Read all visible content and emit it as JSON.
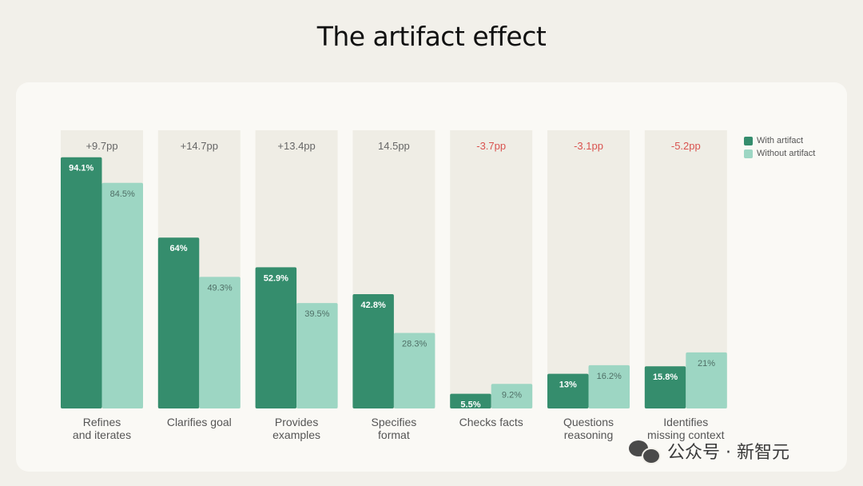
{
  "title": "The artifact effect",
  "colors": {
    "with_artifact": "#358d6d",
    "without_artifact": "#9dd6c3",
    "panel_bg": "#efede5",
    "positive_delta": "#666666",
    "negative_delta": "#d9534f"
  },
  "legend": {
    "with_label": "With artifact",
    "without_label": "Without artifact"
  },
  "watermark": "公众号 · 新智元",
  "chart_data": {
    "type": "bar",
    "title": "The artifact effect",
    "ylim": [
      0,
      100
    ],
    "grid": false,
    "legend_position": "top-right",
    "categories": [
      [
        "Refines",
        "and iterates"
      ],
      [
        "Clarifies goal"
      ],
      [
        "Provides",
        "examples"
      ],
      [
        "Specifies",
        "format"
      ],
      [
        "Checks facts"
      ],
      [
        "Questions",
        "reasoning"
      ],
      [
        "Identifies",
        "missing context"
      ]
    ],
    "deltas": [
      "+9.7pp",
      "+14.7pp",
      "+13.4pp",
      "14.5pp",
      "-3.7pp",
      "-3.1pp",
      "-5.2pp"
    ],
    "series": [
      {
        "name": "With artifact",
        "values": [
          94.1,
          64,
          52.9,
          42.8,
          5.5,
          13,
          15.8
        ],
        "labels": [
          "94.1%",
          "64%",
          "52.9%",
          "42.8%",
          "5.5%",
          "13%",
          "15.8%"
        ]
      },
      {
        "name": "Without artifact",
        "values": [
          84.5,
          49.3,
          39.5,
          28.3,
          9.2,
          16.2,
          21
        ],
        "labels": [
          "84.5%",
          "49.3%",
          "39.5%",
          "28.3%",
          "9.2%",
          "16.2%",
          "21%"
        ]
      }
    ]
  }
}
